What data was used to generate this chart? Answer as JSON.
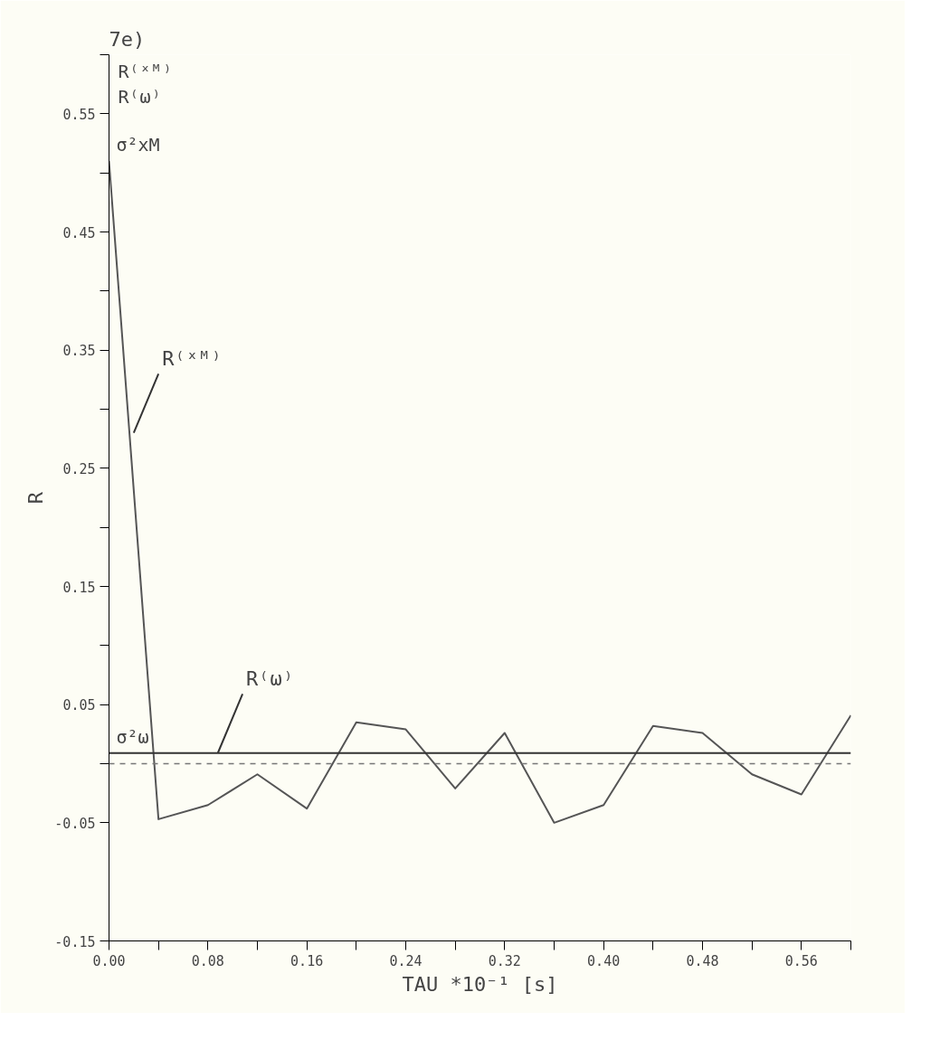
{
  "chart_data": {
    "type": "line",
    "title": "7e)",
    "xlabel": "TAU *10⁻¹ [s]",
    "ylabel": "R",
    "xlim": [
      0,
      0.6
    ],
    "ylim": [
      -0.15,
      0.6
    ],
    "xticks": [
      {
        "value": 0.0,
        "label": "0.00"
      },
      {
        "value": 0.04,
        "label": null
      },
      {
        "value": 0.08,
        "label": "0.08"
      },
      {
        "value": 0.12,
        "label": null
      },
      {
        "value": 0.16,
        "label": "0.16"
      },
      {
        "value": 0.2,
        "label": null
      },
      {
        "value": 0.24,
        "label": "0.24"
      },
      {
        "value": 0.28,
        "label": null
      },
      {
        "value": 0.32,
        "label": "0.32"
      },
      {
        "value": 0.36,
        "label": null
      },
      {
        "value": 0.4,
        "label": "0.40"
      },
      {
        "value": 0.44,
        "label": null
      },
      {
        "value": 0.48,
        "label": "0.48"
      },
      {
        "value": 0.52,
        "label": null
      },
      {
        "value": 0.56,
        "label": "0.56"
      },
      {
        "value": 0.6,
        "label": null
      }
    ],
    "yticks": [
      -0.15,
      -0.05,
      0.05,
      0.15,
      0.25,
      0.35,
      0.45,
      0.55,
      {
        "value": 0.0,
        "label": null
      },
      {
        "value": 0.1,
        "label": null
      },
      {
        "value": 0.2,
        "label": null
      },
      {
        "value": 0.3,
        "label": null
      },
      {
        "value": 0.4,
        "label": null
      },
      {
        "value": 0.5,
        "label": null
      },
      {
        "value": 0.6,
        "label": null
      }
    ],
    "series": [
      {
        "color": "#555555",
        "x": [
          0,
          0.04,
          0.08,
          0.12,
          0.16,
          0.2,
          0.24,
          0.28,
          0.32,
          0.36,
          0.4,
          0.44,
          0.48,
          0.52,
          0.56,
          0.6
        ],
        "values": [
          0.51,
          -0.047,
          -0.035,
          -0.009,
          -0.038,
          0.035,
          0.029,
          -0.021,
          0.026,
          -0.05,
          -0.035,
          0.032,
          0.026,
          -0.009,
          -0.026,
          0.041
        ]
      },
      {
        "color": "#333333",
        "x": [
          0,
          0.6
        ],
        "values": [
          0.009,
          0.009
        ]
      }
    ],
    "ref_lines": [
      {
        "axis": "y",
        "value": 0.0,
        "color": "#777777",
        "line_style": "dashed"
      }
    ],
    "annotations": [
      {
        "text": "R⁽ˣᴹ⁾",
        "x": 0.02,
        "y": 0.28
      },
      {
        "text": "R⁽ω⁾",
        "x": 0.088,
        "y": 0.009
      },
      {
        "text": "σ²xM",
        "x": 0,
        "y": 0.51
      },
      {
        "text": "σ²ω",
        "x": 0,
        "y": 0.009
      },
      "R⁽ˣᴹ⁾",
      "R⁽ω⁾"
    ],
    "grid": false,
    "marker": "none",
    "line_style": "solid"
  }
}
